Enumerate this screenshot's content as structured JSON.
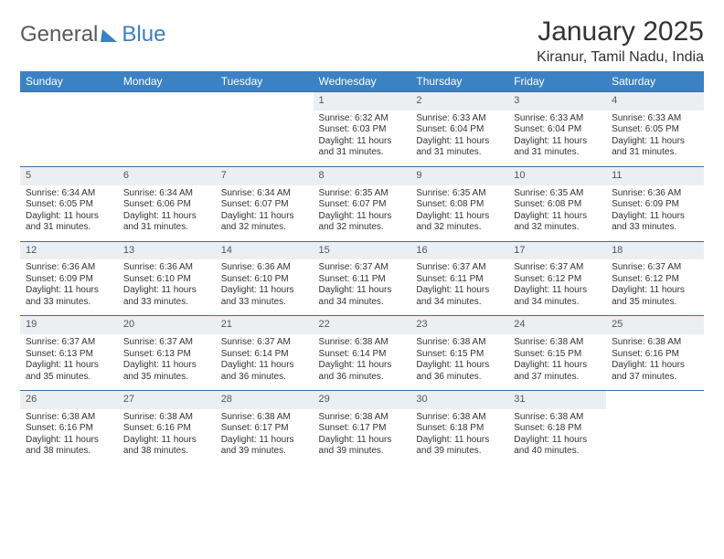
{
  "brand": {
    "part1": "General",
    "part2": "Blue"
  },
  "title": "January 2025",
  "location": "Kiranur, Tamil Nadu, India",
  "colors": {
    "header_bg": "#3b82c4",
    "header_fg": "#ffffff",
    "daynum_bg": "#eceff1",
    "row_top_border": "#3b6fa0",
    "body_text": "#333333",
    "brand_gray": "#5a5a5a",
    "brand_blue": "#3b7fc4",
    "page_bg": "#ffffff"
  },
  "fonts": {
    "month_title_pt": 30,
    "location_pt": 16,
    "dayhead_pt": 12,
    "daynum_pt": 11,
    "body_pt": 10
  },
  "day_headers": [
    "Sunday",
    "Monday",
    "Tuesday",
    "Wednesday",
    "Thursday",
    "Friday",
    "Saturday"
  ],
  "weeks": [
    [
      {
        "n": "",
        "empty": true
      },
      {
        "n": "",
        "empty": true
      },
      {
        "n": "",
        "empty": true
      },
      {
        "n": "1",
        "sunrise": "6:32 AM",
        "sunset": "6:03 PM",
        "dl_h": 11,
        "dl_m": 31
      },
      {
        "n": "2",
        "sunrise": "6:33 AM",
        "sunset": "6:04 PM",
        "dl_h": 11,
        "dl_m": 31
      },
      {
        "n": "3",
        "sunrise": "6:33 AM",
        "sunset": "6:04 PM",
        "dl_h": 11,
        "dl_m": 31
      },
      {
        "n": "4",
        "sunrise": "6:33 AM",
        "sunset": "6:05 PM",
        "dl_h": 11,
        "dl_m": 31
      }
    ],
    [
      {
        "n": "5",
        "sunrise": "6:34 AM",
        "sunset": "6:05 PM",
        "dl_h": 11,
        "dl_m": 31
      },
      {
        "n": "6",
        "sunrise": "6:34 AM",
        "sunset": "6:06 PM",
        "dl_h": 11,
        "dl_m": 31
      },
      {
        "n": "7",
        "sunrise": "6:34 AM",
        "sunset": "6:07 PM",
        "dl_h": 11,
        "dl_m": 32
      },
      {
        "n": "8",
        "sunrise": "6:35 AM",
        "sunset": "6:07 PM",
        "dl_h": 11,
        "dl_m": 32
      },
      {
        "n": "9",
        "sunrise": "6:35 AM",
        "sunset": "6:08 PM",
        "dl_h": 11,
        "dl_m": 32
      },
      {
        "n": "10",
        "sunrise": "6:35 AM",
        "sunset": "6:08 PM",
        "dl_h": 11,
        "dl_m": 32
      },
      {
        "n": "11",
        "sunrise": "6:36 AM",
        "sunset": "6:09 PM",
        "dl_h": 11,
        "dl_m": 33
      }
    ],
    [
      {
        "n": "12",
        "sunrise": "6:36 AM",
        "sunset": "6:09 PM",
        "dl_h": 11,
        "dl_m": 33
      },
      {
        "n": "13",
        "sunrise": "6:36 AM",
        "sunset": "6:10 PM",
        "dl_h": 11,
        "dl_m": 33
      },
      {
        "n": "14",
        "sunrise": "6:36 AM",
        "sunset": "6:10 PM",
        "dl_h": 11,
        "dl_m": 33
      },
      {
        "n": "15",
        "sunrise": "6:37 AM",
        "sunset": "6:11 PM",
        "dl_h": 11,
        "dl_m": 34
      },
      {
        "n": "16",
        "sunrise": "6:37 AM",
        "sunset": "6:11 PM",
        "dl_h": 11,
        "dl_m": 34
      },
      {
        "n": "17",
        "sunrise": "6:37 AM",
        "sunset": "6:12 PM",
        "dl_h": 11,
        "dl_m": 34
      },
      {
        "n": "18",
        "sunrise": "6:37 AM",
        "sunset": "6:12 PM",
        "dl_h": 11,
        "dl_m": 35
      }
    ],
    [
      {
        "n": "19",
        "sunrise": "6:37 AM",
        "sunset": "6:13 PM",
        "dl_h": 11,
        "dl_m": 35
      },
      {
        "n": "20",
        "sunrise": "6:37 AM",
        "sunset": "6:13 PM",
        "dl_h": 11,
        "dl_m": 35
      },
      {
        "n": "21",
        "sunrise": "6:37 AM",
        "sunset": "6:14 PM",
        "dl_h": 11,
        "dl_m": 36
      },
      {
        "n": "22",
        "sunrise": "6:38 AM",
        "sunset": "6:14 PM",
        "dl_h": 11,
        "dl_m": 36
      },
      {
        "n": "23",
        "sunrise": "6:38 AM",
        "sunset": "6:15 PM",
        "dl_h": 11,
        "dl_m": 36
      },
      {
        "n": "24",
        "sunrise": "6:38 AM",
        "sunset": "6:15 PM",
        "dl_h": 11,
        "dl_m": 37
      },
      {
        "n": "25",
        "sunrise": "6:38 AM",
        "sunset": "6:16 PM",
        "dl_h": 11,
        "dl_m": 37
      }
    ],
    [
      {
        "n": "26",
        "sunrise": "6:38 AM",
        "sunset": "6:16 PM",
        "dl_h": 11,
        "dl_m": 38
      },
      {
        "n": "27",
        "sunrise": "6:38 AM",
        "sunset": "6:16 PM",
        "dl_h": 11,
        "dl_m": 38
      },
      {
        "n": "28",
        "sunrise": "6:38 AM",
        "sunset": "6:17 PM",
        "dl_h": 11,
        "dl_m": 39
      },
      {
        "n": "29",
        "sunrise": "6:38 AM",
        "sunset": "6:17 PM",
        "dl_h": 11,
        "dl_m": 39
      },
      {
        "n": "30",
        "sunrise": "6:38 AM",
        "sunset": "6:18 PM",
        "dl_h": 11,
        "dl_m": 39
      },
      {
        "n": "31",
        "sunrise": "6:38 AM",
        "sunset": "6:18 PM",
        "dl_h": 11,
        "dl_m": 40
      },
      {
        "n": "",
        "empty": true
      }
    ]
  ],
  "labels": {
    "sunrise": "Sunrise: ",
    "sunset": "Sunset: ",
    "daylight_prefix": "Daylight: ",
    "hours_word": " hours",
    "and_word": "and ",
    "minutes_word": " minutes."
  }
}
